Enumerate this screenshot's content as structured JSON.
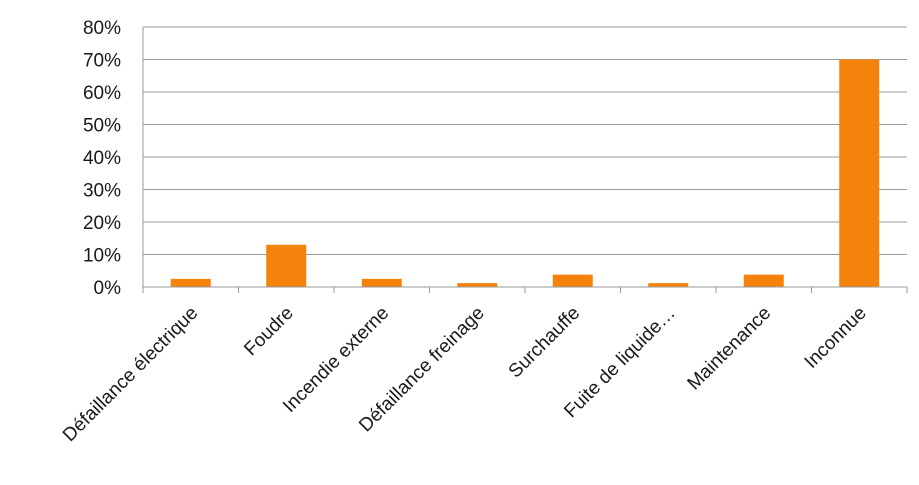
{
  "chart_data": {
    "type": "bar",
    "categories": [
      "Défaillance électrique",
      "Foudre",
      "Incendie externe",
      "Défaillance freinage",
      "Surchauffe",
      "Fuite de liquide…",
      "Maintenance",
      "Inconnue"
    ],
    "values": [
      2.5,
      13,
      2.5,
      1.2,
      3.8,
      1.2,
      3.8,
      70
    ],
    "ylim": [
      0,
      80
    ],
    "yticks": [
      "0%",
      "10%",
      "20%",
      "30%",
      "40%",
      "50%",
      "60%",
      "70%",
      "80%"
    ],
    "bar_color": "#F5820B",
    "grid": true,
    "legend": "none"
  }
}
